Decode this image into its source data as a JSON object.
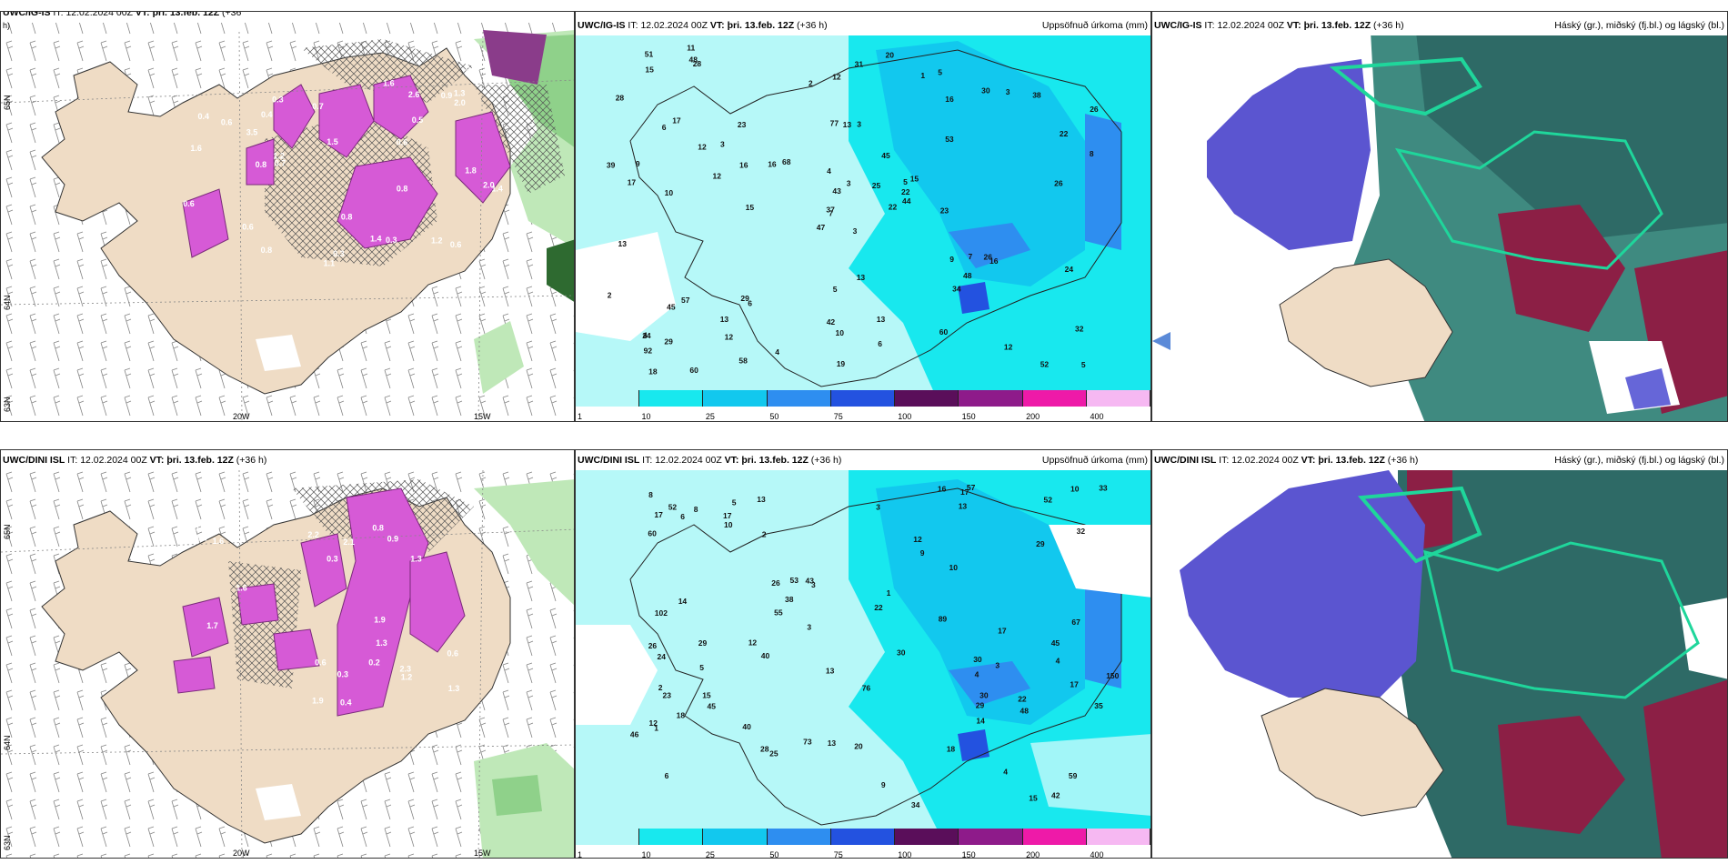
{
  "panels": {
    "tl": {
      "model": "UWC/IG-IS",
      "it_label": "IT:",
      "it": "12.02.2024 00Z",
      "vt_label": "VT:",
      "vt": "þri. 13.feb. 12Z",
      "lead": "(+36",
      "lead2": "h)"
    },
    "tm": {
      "model": "UWC/IG-IS",
      "it_label": "IT:",
      "it": "12.02.2024 00Z",
      "vt_label": "VT:",
      "vt": "þri. 13.feb. 12Z",
      "lead": "(+36 h)",
      "title": "Uppsöfnuð úrkoma (mm)"
    },
    "tr": {
      "model": "UWC/IG-IS",
      "it_label": "IT:",
      "it": "12.02.2024 00Z",
      "vt_label": "VT:",
      "vt": "þri. 13.feb. 12Z",
      "lead": "(+36 h)",
      "title": "Háský (gr.), miðský (fj.bl.) og lágský (bl.)"
    },
    "bl": {
      "model": "UWC/DINI ISL",
      "it_label": "IT:",
      "it": "12.02.2024 00Z",
      "vt_label": "VT:",
      "vt": "þri. 13.feb. 12Z",
      "lead": "(+36 h)"
    },
    "bm": {
      "model": "UWC/DINI ISL",
      "it_label": "IT:",
      "it": "12.02.2024 00Z",
      "vt_label": "VT:",
      "vt": "þri. 13.feb. 12Z",
      "lead": "(+36 h)",
      "title": "Uppsöfnuð úrkoma (mm)"
    },
    "br": {
      "model": "UWC/DINI ISL",
      "it_label": "IT:",
      "it": "12.02.2024 00Z",
      "vt_label": "VT:",
      "vt": "þri. 13.feb. 12Z",
      "lead": "(+36 h)",
      "title": "Háský (gr.), miðský (fj.bl.) og lágský (bl.)"
    }
  },
  "axes": {
    "lon_20": "20W",
    "lon_15": "15W",
    "lat_65": "65N",
    "lat_64": "64N",
    "lat_63": "63N"
  },
  "colorbar": {
    "labels": [
      "1",
      "10",
      "25",
      "50",
      "75",
      "100",
      "150",
      "200",
      "400"
    ],
    "colors": [
      "#b6f8f8",
      "#18e8ee",
      "#12c8ee",
      "#2e8ef0",
      "#2352e0",
      "#5a0e5a",
      "#8e1b8a",
      "#ee1aa8",
      "#f6b8f2"
    ]
  },
  "precip_top": [
    "3",
    "6",
    "7",
    "4",
    "5",
    "6",
    "5",
    "3",
    "16",
    "22",
    "28",
    "5",
    "10",
    "26",
    "47",
    "53",
    "60",
    "77",
    "45",
    "57",
    "68",
    "92",
    "12",
    "13",
    "15",
    "16",
    "17",
    "12",
    "17",
    "9",
    "8",
    "37",
    "42",
    "43",
    "23",
    "30",
    "29",
    "52",
    "32",
    "26",
    "20",
    "16",
    "12",
    "34",
    "58",
    "39",
    "22",
    "18",
    "10",
    "44",
    "45",
    "22",
    "28",
    "48",
    "60",
    "13",
    "48",
    "51",
    "13",
    "38",
    "31",
    "15",
    "9",
    "3",
    "3",
    "11",
    "1",
    "2",
    "3",
    "2",
    "5",
    "4",
    "7",
    "16",
    "24",
    "15",
    "12",
    "13",
    "4",
    "6",
    "25",
    "29",
    "23",
    "24",
    "19",
    "26",
    "13",
    "12"
  ],
  "precip_bot": [
    "4",
    "4",
    "6",
    "5",
    "3",
    "4",
    "1",
    "13",
    "26",
    "34",
    "60",
    "26",
    "17",
    "59",
    "73",
    "67",
    "76",
    "30",
    "43",
    "45",
    "33",
    "52",
    "55",
    "17",
    "16",
    "17",
    "30",
    "24",
    "10",
    "17",
    "9",
    "18",
    "38",
    "40",
    "45",
    "48",
    "29",
    "29",
    "20",
    "18",
    "32",
    "57",
    "42",
    "13",
    "22",
    "40",
    "46",
    "52",
    "89",
    "102",
    "150",
    "53",
    "10",
    "30",
    "14",
    "15",
    "10",
    "8",
    "5",
    "8",
    "3",
    "2",
    "1",
    "2",
    "3",
    "14",
    "13",
    "15",
    "12",
    "12",
    "9",
    "13",
    "3",
    "6",
    "22",
    "17",
    "23",
    "28",
    "25",
    "29",
    "35",
    "12"
  ],
  "snow_top": [
    "0.4",
    "0.4",
    "0.6",
    "0.3",
    "0.9",
    "1.1",
    "0.8",
    "0.7",
    "1.3",
    "1.4",
    "2.0",
    "0.3",
    "0.5",
    "0.6",
    "1.6",
    "0.8",
    "1.2",
    "0.7",
    "0.6",
    "1.4",
    "1.2",
    "1.8",
    "1.5",
    "0.8",
    "2.6",
    "3.5",
    "2.0",
    "1.6",
    "0.7",
    "0.8",
    "0.6",
    "0.3",
    "0.7",
    "0.6"
  ],
  "snow_bot": [
    "0.3",
    "1.2",
    "1.4",
    "1.3",
    "1.9",
    "2.2",
    "0.4",
    "0.8",
    "1.6",
    "1.7",
    "2.3",
    "2.1",
    "1.9",
    "1.6",
    "1.3",
    "0.9",
    "0.6",
    "0.2",
    "0.3",
    "1.3",
    "1.1",
    "0.6"
  ]
}
